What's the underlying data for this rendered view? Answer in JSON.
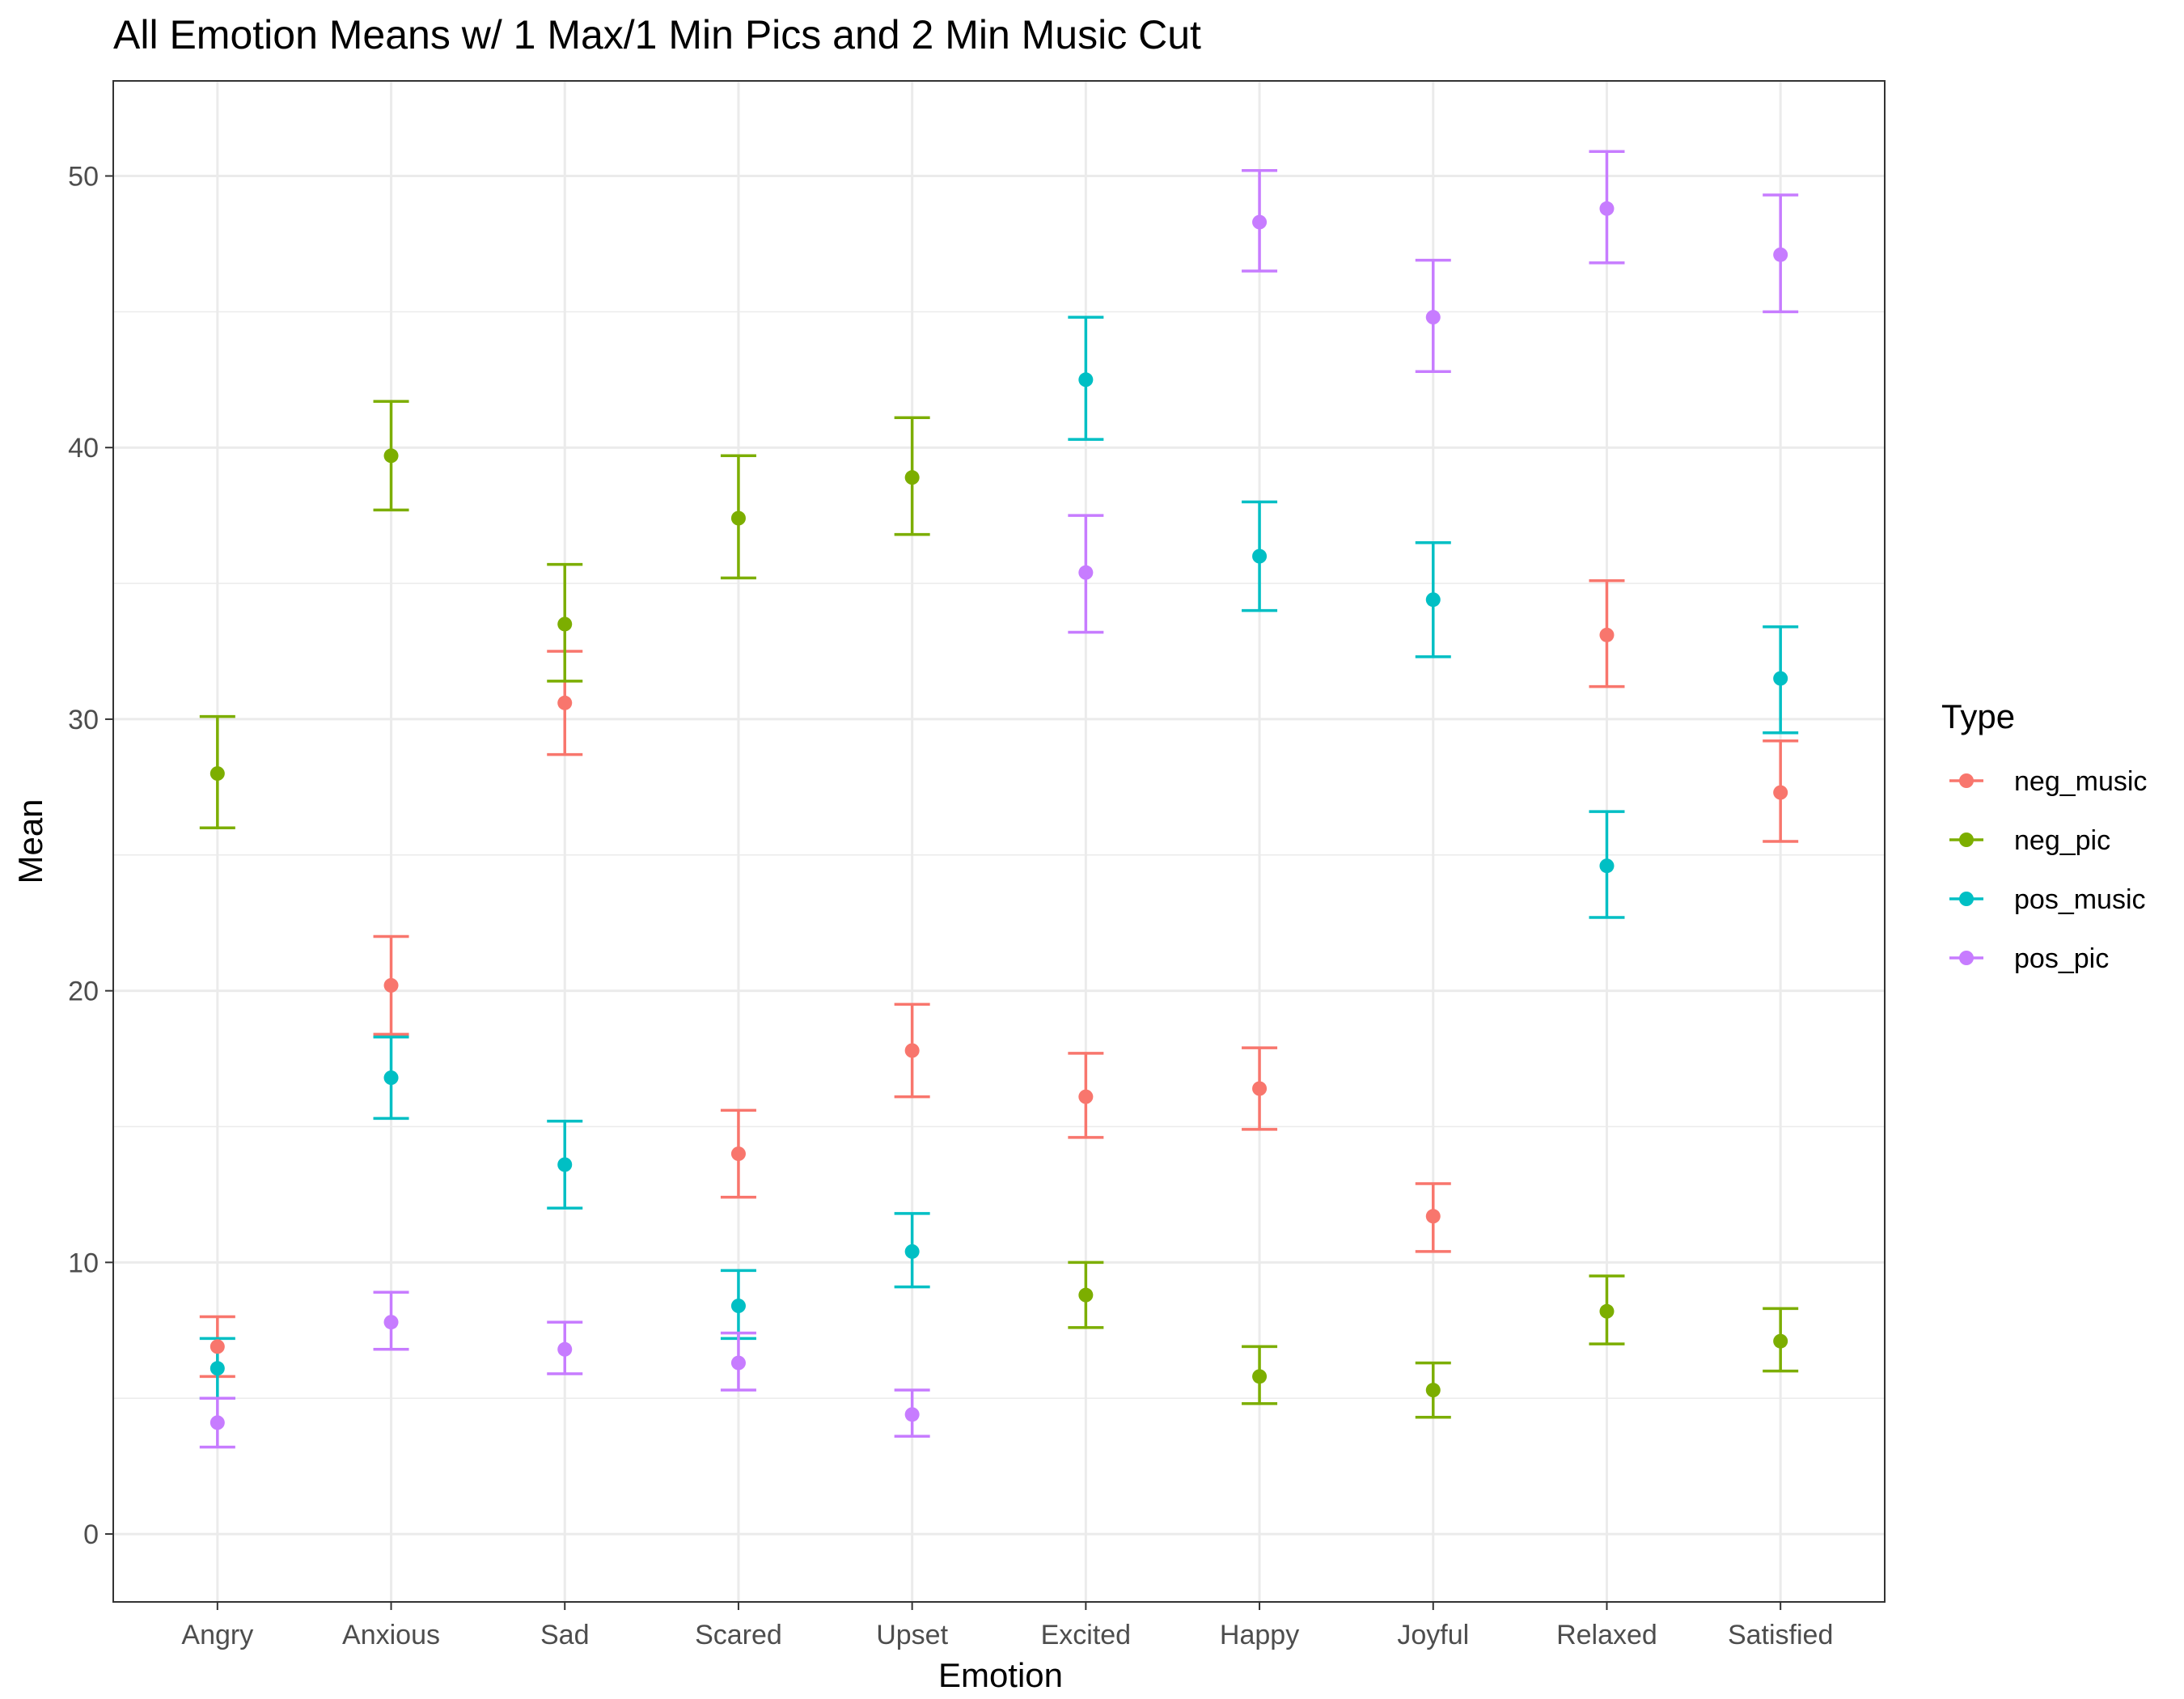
{
  "chart_data": {
    "type": "scatter",
    "title": "All Emotion Means w/ 1 Max/1 Min Pics and 2 Min Music Cut",
    "xlabel": "Emotion",
    "ylabel": "Mean",
    "ylim": [
      -2.5,
      53.5
    ],
    "yticks": [
      0,
      10,
      20,
      30,
      40,
      50
    ],
    "grid": true,
    "legend_position": "right",
    "legend_title": "Type",
    "categories": [
      "Angry",
      "Anxious",
      "Sad",
      "Scared",
      "Upset",
      "Excited",
      "Happy",
      "Joyful",
      "Relaxed",
      "Satisfied"
    ],
    "series": [
      {
        "name": "neg_music",
        "color": "#F8766D",
        "values": [
          6.9,
          20.2,
          30.6,
          14.0,
          17.8,
          16.1,
          16.4,
          11.7,
          33.1,
          27.3
        ],
        "lower": [
          5.8,
          18.4,
          28.7,
          12.4,
          16.1,
          14.6,
          14.9,
          10.4,
          31.2,
          25.5
        ],
        "upper": [
          8.0,
          22.0,
          32.5,
          15.6,
          19.5,
          17.7,
          17.9,
          12.9,
          35.1,
          29.2
        ]
      },
      {
        "name": "neg_pic",
        "color": "#7CAE00",
        "values": [
          28.0,
          39.7,
          33.5,
          37.4,
          38.9,
          8.8,
          5.8,
          5.3,
          8.2,
          7.1
        ],
        "lower": [
          26.0,
          37.7,
          31.4,
          35.2,
          36.8,
          7.6,
          4.8,
          4.3,
          7.0,
          6.0
        ],
        "upper": [
          30.1,
          41.7,
          35.7,
          39.7,
          41.1,
          10.0,
          6.9,
          6.3,
          9.5,
          8.3
        ]
      },
      {
        "name": "pos_music",
        "color": "#00BFC4",
        "values": [
          6.1,
          16.8,
          13.6,
          8.4,
          10.4,
          42.5,
          36.0,
          34.4,
          24.6,
          31.5
        ],
        "lower": [
          5.0,
          15.3,
          12.0,
          7.2,
          9.1,
          40.3,
          34.0,
          32.3,
          22.7,
          29.5
        ],
        "upper": [
          7.2,
          18.3,
          15.2,
          9.7,
          11.8,
          44.8,
          38.0,
          36.5,
          26.6,
          33.4
        ]
      },
      {
        "name": "pos_pic",
        "color": "#C77CFF",
        "values": [
          4.1,
          7.8,
          6.8,
          6.3,
          4.4,
          35.4,
          48.3,
          44.8,
          48.8,
          47.1
        ],
        "lower": [
          3.2,
          6.8,
          5.9,
          5.3,
          3.6,
          33.2,
          46.5,
          42.8,
          46.8,
          45.0
        ],
        "upper": [
          5.0,
          8.9,
          7.8,
          7.4,
          5.3,
          37.5,
          50.2,
          46.9,
          50.9,
          49.3
        ]
      }
    ]
  }
}
